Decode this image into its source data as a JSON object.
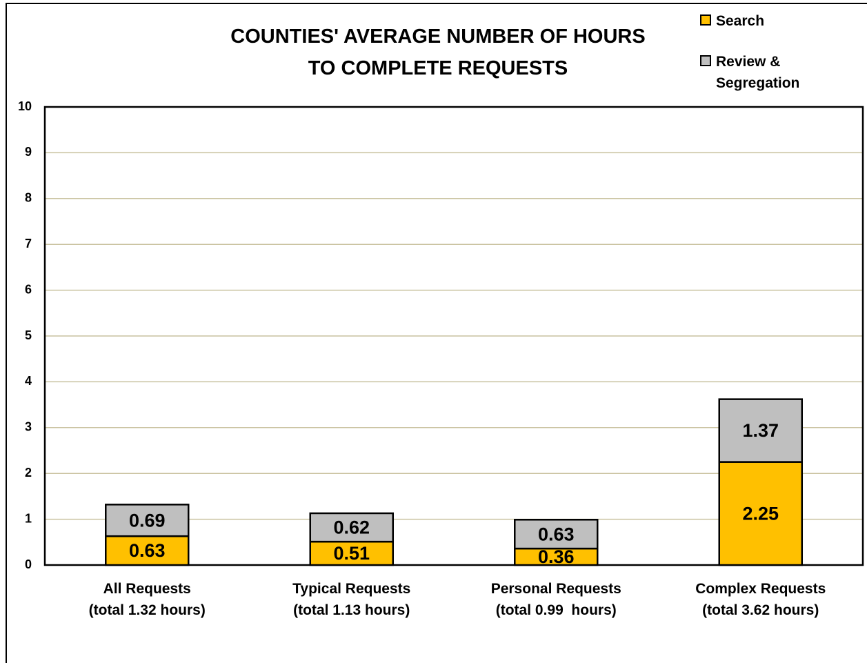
{
  "chart_data": {
    "type": "stacked_bar",
    "title": "COUNTIES' AVERAGE NUMBER OF HOURS\nTO COMPLETE REQUESTS",
    "categories": [
      "All Requests\n(total 1.32 hours)",
      "Typical Requests\n(total 1.13 hours)",
      "Personal Requests\n(total 0.99  hours)",
      "Complex Requests\n(total 3.62 hours)"
    ],
    "series": [
      {
        "name": "Search",
        "color": "#FFC000",
        "values": [
          0.63,
          0.51,
          0.36,
          2.25
        ]
      },
      {
        "name": "Review &\nSegregation",
        "color": "#BFBFBF",
        "values": [
          0.69,
          0.62,
          0.63,
          1.37
        ]
      }
    ],
    "ylim": [
      0,
      10
    ],
    "yticks": [
      0,
      1,
      2,
      3,
      4,
      5,
      6,
      7,
      8,
      9,
      10
    ],
    "grid": true,
    "legend": "top-right"
  }
}
